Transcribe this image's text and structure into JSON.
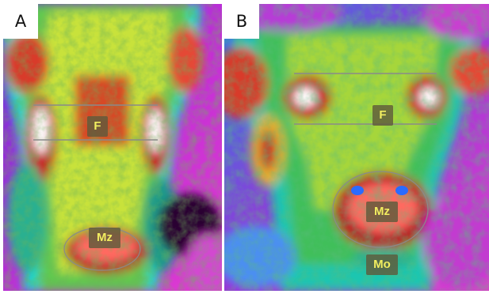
{
  "figure": {
    "panels": [
      {
        "letter": "A",
        "labels": {
          "forehead": "F",
          "muzzle": "Mz"
        }
      },
      {
        "letter": "B",
        "labels": {
          "forehead": "F",
          "muzzle": "Mz",
          "mouth": "Mo"
        }
      }
    ]
  }
}
